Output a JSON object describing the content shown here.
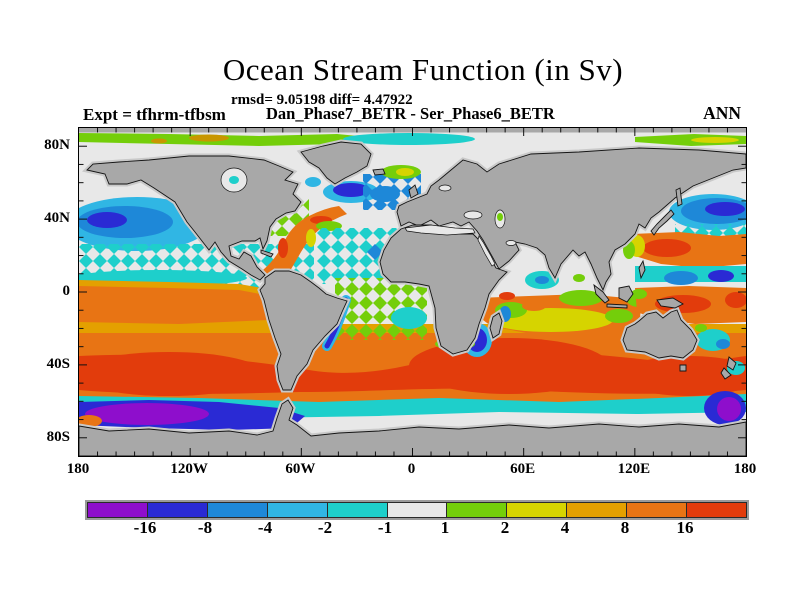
{
  "header": {
    "title": "Ocean Stream Function (in Sv)",
    "stats": "rmsd= 9.05198 diff= 4.47922",
    "comparison": "Dan_Phase7_BETR - Ser_Phase6_BETR",
    "experiment": "Expt = tfhrm-tfbsm",
    "season": "ANN"
  },
  "axes": {
    "x": {
      "majors": [
        -180,
        -120,
        -60,
        0,
        60,
        120,
        180
      ],
      "labels": [
        "180",
        "120W",
        "60W",
        "0",
        "60E",
        "120E",
        "180"
      ],
      "minor_step_deg": 10,
      "range_deg": [
        -180,
        180
      ]
    },
    "y": {
      "majors": [
        80,
        40,
        0,
        -40,
        -80
      ],
      "labels": [
        "80N",
        "40N",
        "0",
        "40S",
        "80S"
      ],
      "minor_step_deg": 10,
      "range_deg": [
        90,
        -90
      ]
    }
  },
  "colorbar": {
    "colors": [
      "#8E0ECC",
      "#2A2AD4",
      "#1E88D8",
      "#30B6E4",
      "#1ECFCB",
      "#E8E8E8",
      "#74CE0A",
      "#D6D400",
      "#E4A000",
      "#E87414",
      "#E23C0C"
    ],
    "boundary_labels": [
      "-16",
      "-8",
      "-4",
      "-2",
      "-1",
      "1",
      "2",
      "4",
      "8",
      "16"
    ]
  },
  "map_style": {
    "land_color": "#A8A8A8",
    "land_halo": "#C9C9C9",
    "ocean_color": "#E8E8E8",
    "coast_color": "#141414"
  },
  "chart_data": {
    "type": "heatmap",
    "title": "Ocean Stream Function (in Sv)",
    "units": "Sv",
    "statistics": {
      "rmsd": 9.05198,
      "diff": 4.47922
    },
    "comparison": {
      "minuend": "Dan_Phase7_BETR",
      "subtrahend": "Ser_Phase6_BETR"
    },
    "experiment": "tfhrm-tfbsm",
    "season": "ANN",
    "projection": "global latitude-longitude map, 180W-180E, 90N-90S",
    "x_axis": {
      "quantity": "longitude",
      "tick_labels": [
        "180",
        "120W",
        "60W",
        "0",
        "60E",
        "120E",
        "180"
      ],
      "minor_tick_step_deg": 10
    },
    "y_axis": {
      "quantity": "latitude",
      "tick_labels": [
        "80N",
        "40N",
        "0",
        "40S",
        "80S"
      ],
      "minor_tick_step_deg": 10
    },
    "contour_levels_sv": [
      -16,
      -8,
      -4,
      -2,
      -1,
      1,
      2,
      4,
      8,
      16
    ],
    "palette": [
      "#8E0ECC",
      "#2A2AD4",
      "#1E88D8",
      "#30B6E4",
      "#1ECFCB",
      "#E8E8E8",
      "#74CE0A",
      "#D6D400",
      "#E4A000",
      "#E87414",
      "#E23C0C"
    ],
    "land_mask": "continents shaded gray",
    "notable_features": [
      {
        "region": "Arctic band 82N-88N, most longitudes",
        "value_sv": "+1 to +4"
      },
      {
        "region": "Northeast Pacific 30N-50N, 180-140W",
        "value_sv": "-4 to -2"
      },
      {
        "region": "Subtropical North Pacific 5N-35N (speckled diamonds)",
        "value_sv": "-2 to -1"
      },
      {
        "region": "Gulf Stream path 25N-45N, western North Atlantic",
        "value_sv": "+4 to +16"
      },
      {
        "region": "Subpolar North Atlantic south of Greenland",
        "value_sv": "-8 to -4"
      },
      {
        "region": "Norwegian / Greenland Sea (speckled)",
        "value_sv": "-8 to -2"
      },
      {
        "region": "Kuroshio extension 35N-45N, 140E-180",
        "value_sv": "-16 to -4"
      },
      {
        "region": "Northwest subtropical Pacific 20N-30N",
        "value_sv": "+4 to +16"
      },
      {
        "region": "Tropical band 5N-20S in all basins",
        "value_sv": "+4 to +8"
      },
      {
        "region": "Southern mid-latitudes 30S-58S, circumpolar",
        "value_sv": "+8 to >+16"
      },
      {
        "region": "Antarctic circumpolar 60S-70S, Pacific sector",
        "value_sv": "<-16 (purple core)"
      },
      {
        "region": "South of New Zealand ~62S, 170E",
        "value_sv": "<-16"
      },
      {
        "region": "Mozambique Channel west of Madagascar",
        "value_sv": "-8 to -4"
      }
    ]
  }
}
